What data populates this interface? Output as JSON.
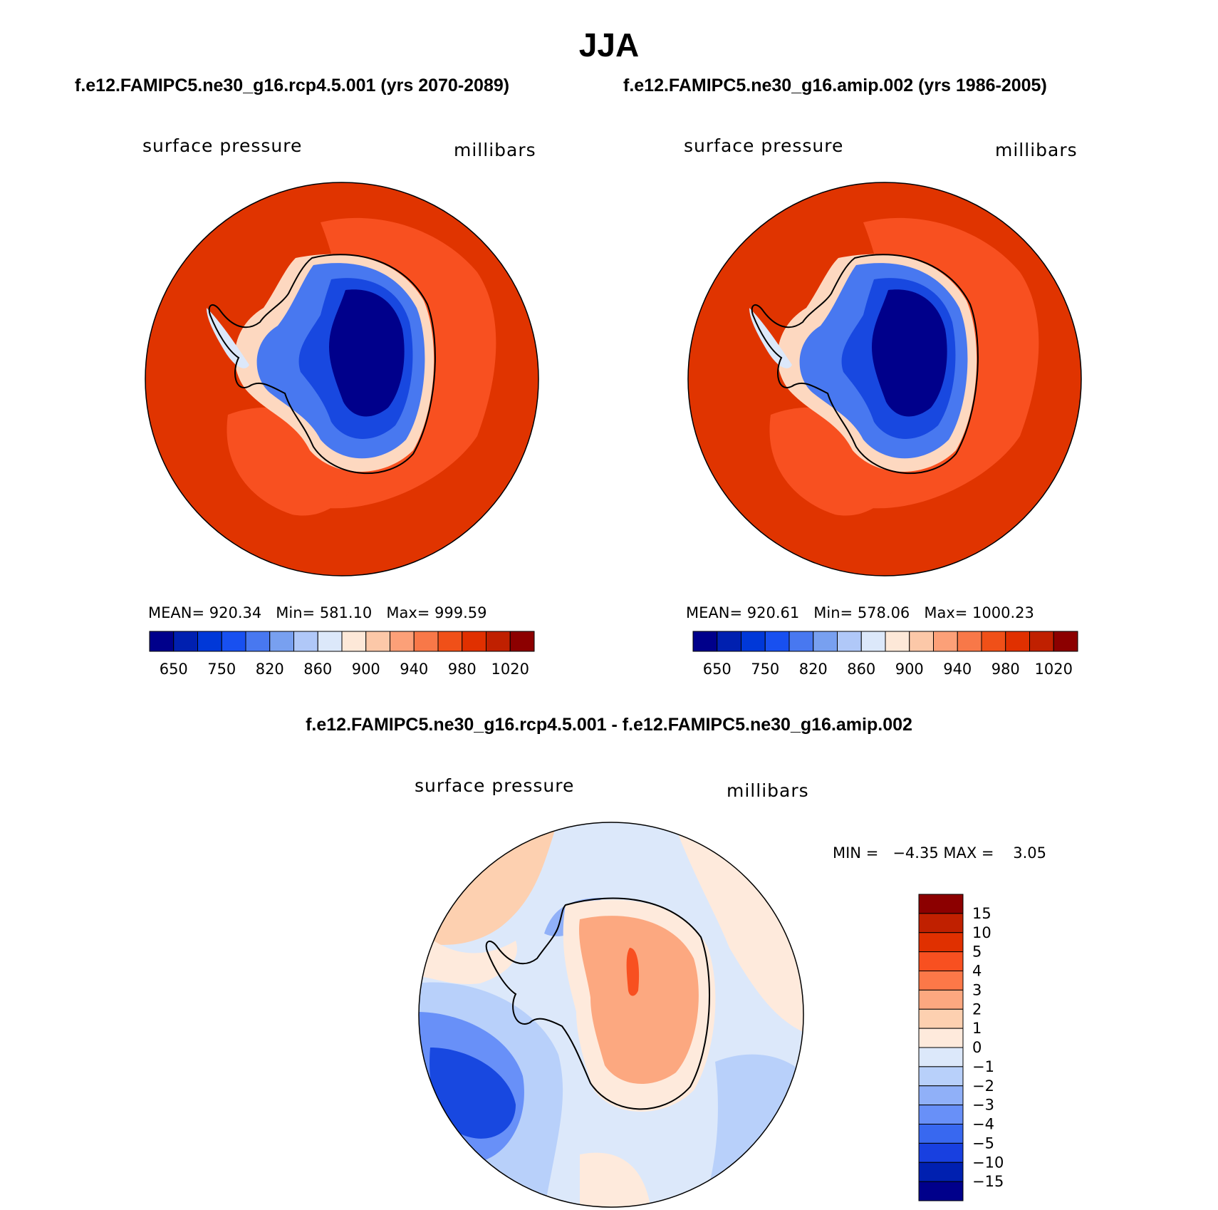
{
  "title": "JJA",
  "panels": [
    {
      "id": "rcp45",
      "case": "f.e12.FAMIPC5.ne30_g16.rcp4.5.001 (yrs 2070-2089)",
      "variable": "surface pressure",
      "units": "millibars",
      "stats": {
        "mean_label": "MEAN=",
        "mean": "920.34",
        "min_label": "Min=",
        "min": "581.10",
        "max_label": "Max=",
        "max": "999.59"
      }
    },
    {
      "id": "amip",
      "case": "f.e12.FAMIPC5.ne30_g16.amip.002 (yrs 1986-2005)",
      "variable": "surface pressure",
      "units": "millibars",
      "stats": {
        "mean_label": "MEAN=",
        "mean": "920.61",
        "min_label": "Min=",
        "min": "578.06",
        "max_label": "Max=",
        "max": "1000.23"
      }
    }
  ],
  "diff": {
    "title": "f.e12.FAMIPC5.ne30_g16.rcp4.5.001 - f.e12.FAMIPC5.ne30_g16.amip.002",
    "variable": "surface pressure",
    "units": "millibars",
    "minmax": {
      "min_label": "MIN =",
      "min": "−4.35",
      "max_label": "MAX =",
      "max": "3.05"
    }
  },
  "chart_data": [
    {
      "type": "heatmap",
      "projection": "south polar stereographic",
      "region": "Antarctica",
      "variable": "surface pressure",
      "units": "millibars",
      "case": "f.e12.FAMIPC5.ne30_g16.rcp4.5.001 (yrs 2070-2089)",
      "mean": 920.34,
      "min": 581.1,
      "max": 999.59,
      "colorbar": {
        "tick_labels": [
          "650",
          "750",
          "820",
          "860",
          "900",
          "940",
          "980",
          "1020"
        ],
        "colors": [
          "#00008b",
          "#0020b0",
          "#0038d8",
          "#1850f0",
          "#4878f0",
          "#78a0f0",
          "#b0c8f8",
          "#dce8fa",
          "#fde8d8",
          "#fcc8a8",
          "#fca078",
          "#f87848",
          "#f05018",
          "#e03000",
          "#c02000",
          "#8c0000"
        ]
      }
    },
    {
      "type": "heatmap",
      "projection": "south polar stereographic",
      "region": "Antarctica",
      "variable": "surface pressure",
      "units": "millibars",
      "case": "f.e12.FAMIPC5.ne30_g16.amip.002 (yrs 1986-2005)",
      "mean": 920.61,
      "min": 578.06,
      "max": 1000.23,
      "colorbar": {
        "tick_labels": [
          "650",
          "750",
          "820",
          "860",
          "900",
          "940",
          "980",
          "1020"
        ],
        "colors": [
          "#00008b",
          "#0020b0",
          "#0038d8",
          "#1850f0",
          "#4878f0",
          "#78a0f0",
          "#b0c8f8",
          "#dce8fa",
          "#fde8d8",
          "#fcc8a8",
          "#fca078",
          "#f87848",
          "#f05018",
          "#e03000",
          "#c02000",
          "#8c0000"
        ]
      }
    },
    {
      "type": "heatmap",
      "projection": "south polar stereographic",
      "region": "Antarctica",
      "variable": "surface pressure",
      "units": "millibars",
      "case": "f.e12.FAMIPC5.ne30_g16.rcp4.5.001 - f.e12.FAMIPC5.ne30_g16.amip.002",
      "min": -4.35,
      "max": 3.05,
      "colorbar": {
        "tick_labels": [
          "15",
          "10",
          "5",
          "4",
          "3",
          "2",
          "1",
          "0",
          "−1",
          "−2",
          "−3",
          "−4",
          "−5",
          "−10",
          "−15"
        ],
        "colors": [
          "#8c0000",
          "#c02000",
          "#e03000",
          "#f85020",
          "#fc7848",
          "#fca880",
          "#fdd0b0",
          "#feeadc",
          "#dce8fa",
          "#b8d0fa",
          "#90b0f8",
          "#6890f8",
          "#3868f0",
          "#1840e0",
          "#0020b0",
          "#00008b"
        ]
      }
    }
  ]
}
